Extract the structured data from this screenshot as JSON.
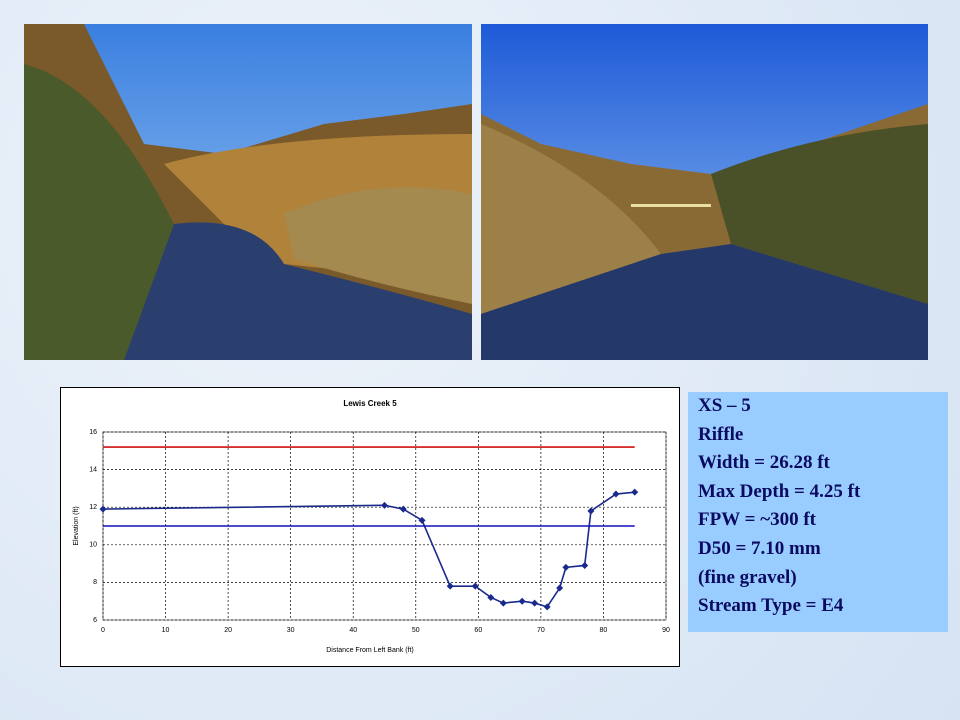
{
  "chart_data": {
    "type": "line",
    "title": "Lewis Creek 5",
    "xlabel": "Distance From Left Bank (ft)",
    "ylabel": "Elevation (ft)",
    "xlim": [
      0,
      90
    ],
    "xticks": [
      0,
      10,
      20,
      30,
      40,
      50,
      60,
      70,
      80,
      90
    ],
    "ylim": [
      6,
      16
    ],
    "yticks": [
      6,
      8,
      10,
      12,
      14,
      16
    ],
    "grid": true,
    "series": [
      {
        "color": "#1a2a8c",
        "markers": true,
        "x": [
          0,
          45,
          48,
          51,
          55.5,
          59.5,
          62,
          64,
          67,
          69,
          71,
          73,
          74,
          77,
          78,
          82,
          85
        ],
        "values": [
          11.9,
          12.1,
          11.9,
          11.3,
          7.8,
          7.8,
          7.2,
          6.9,
          7.0,
          6.9,
          6.7,
          7.7,
          8.8,
          8.9,
          11.8,
          12.7,
          12.8
        ]
      },
      {
        "color": "#d01010",
        "markers": false,
        "x": [
          0,
          85
        ],
        "values": [
          15.2,
          15.2
        ]
      },
      {
        "color": "#1010c0",
        "markers": false,
        "x": [
          0,
          85
        ],
        "values": [
          11.0,
          11.0
        ]
      }
    ]
  },
  "info": {
    "lines": [
      "XS – 5",
      "Riffle",
      "Width = 26.28 ft",
      "Max Depth = 4.25 ft",
      "FPW = ~300 ft",
      "D50 = 7.10 mm",
      "(fine gravel)",
      "Stream Type = E4"
    ]
  }
}
